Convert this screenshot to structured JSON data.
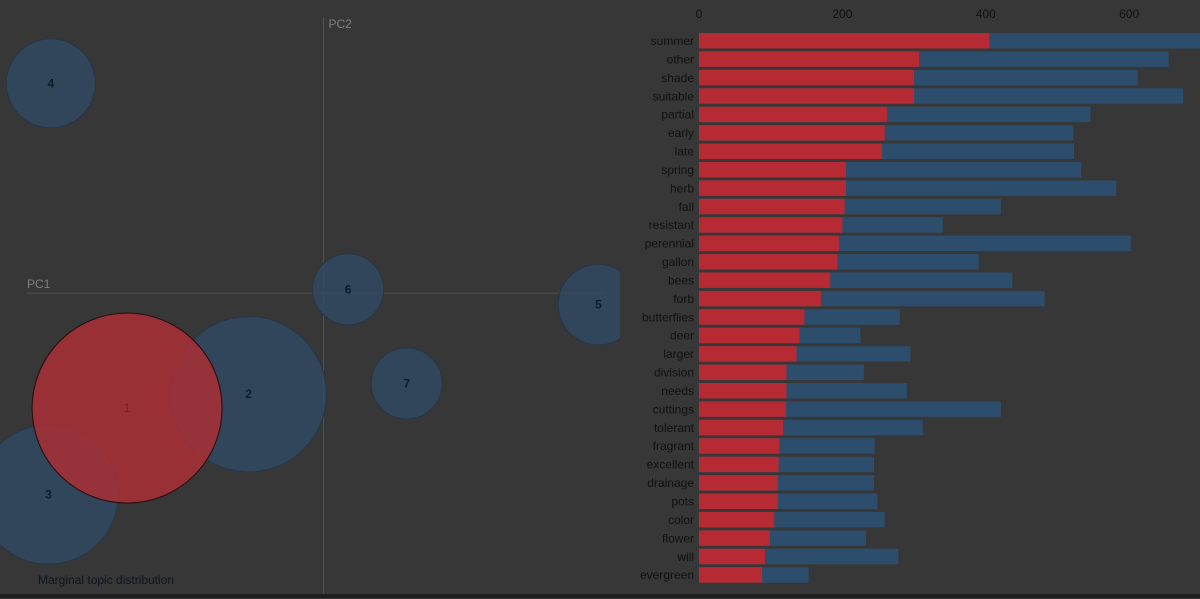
{
  "colors": {
    "background": "#373737",
    "topic_circle": "#2f4a64",
    "selected_topic": "#ae2e35",
    "overall_bar": "#2c4d6c",
    "topic_bar": "#b52a33",
    "axis": "#505050",
    "label_dark": "#111111",
    "circle_label": "#0d1c2b"
  },
  "chart_data": [
    {
      "type": "scatter",
      "title": "",
      "xlabel": "PC1",
      "ylabel": "PC2",
      "legend_text": "Marginal topic distribution",
      "selected_topic": "1",
      "points": [
        {
          "label": "1",
          "x": -0.255,
          "y": -0.149,
          "size": 1.0
        },
        {
          "label": "2",
          "x": -0.097,
          "y": -0.131,
          "size": 0.67
        },
        {
          "label": "3",
          "x": -0.357,
          "y": -0.261,
          "size": 0.54
        },
        {
          "label": "4",
          "x": -0.354,
          "y": 0.272,
          "size": 0.22
        },
        {
          "label": "5",
          "x": 0.357,
          "y": -0.015,
          "size": 0.18
        },
        {
          "label": "6",
          "x": 0.032,
          "y": 0.005,
          "size": 0.14
        },
        {
          "label": "7",
          "x": 0.108,
          "y": -0.117,
          "size": 0.14
        }
      ],
      "xlim": [
        -0.42,
        0.385
      ],
      "ylim": [
        -0.39,
        0.38
      ]
    },
    {
      "type": "bar",
      "title": "",
      "xlabel": "",
      "ylabel": "",
      "orientation": "horizontal",
      "x_ticks": [
        0,
        200,
        400,
        600
      ],
      "xlim": [
        0,
        700
      ],
      "categories": [
        "summer",
        "other",
        "shade",
        "suitable",
        "partial",
        "early",
        "late",
        "spring",
        "herb",
        "fall",
        "resistant",
        "perennial",
        "gallon",
        "bees",
        "forb",
        "butterflies",
        "deer",
        "larger",
        "division",
        "needs",
        "cuttings",
        "tolerant",
        "fragrant",
        "excellent",
        "drainage",
        "pots",
        "color",
        "flower",
        "will",
        "evergreen"
      ],
      "series": [
        {
          "role": "overall",
          "values": [
            700,
            655,
            612,
            675,
            546,
            522,
            523,
            533,
            582,
            421,
            340,
            602,
            390,
            437,
            482,
            280,
            225,
            295,
            230,
            290,
            421,
            312,
            245,
            244,
            244,
            249,
            259,
            233,
            278,
            153
          ]
        },
        {
          "role": "selected-topic",
          "values": [
            405,
            307,
            300,
            300,
            262,
            259,
            255,
            205,
            205,
            203,
            200,
            195,
            193,
            183,
            170,
            147,
            140,
            136,
            122,
            122,
            121,
            117,
            112,
            111,
            110,
            110,
            105,
            99,
            92,
            88
          ]
        }
      ]
    }
  ]
}
